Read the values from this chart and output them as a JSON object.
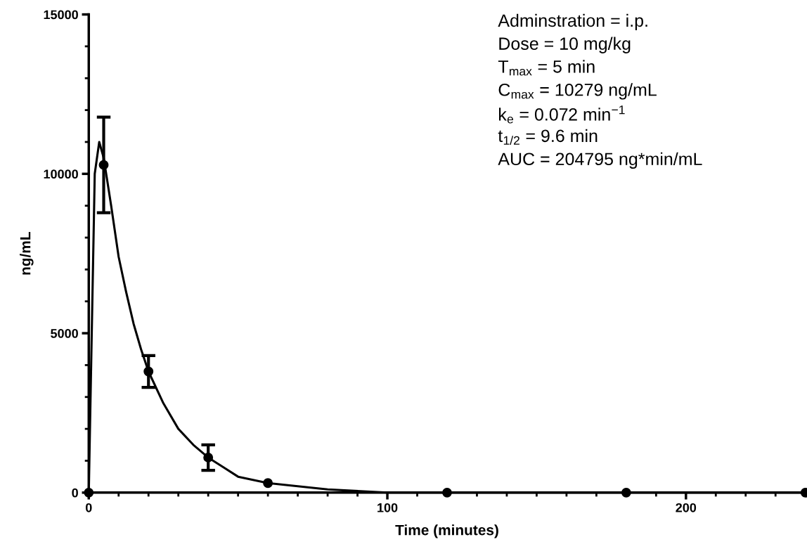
{
  "chart_data": {
    "type": "scatter",
    "xlabel": "Time (minutes)",
    "ylabel": "ng/mL",
    "xlim": [
      0,
      240
    ],
    "xticks": [
      0,
      100,
      200
    ],
    "ylim": [
      0,
      15000
    ],
    "yticks": [
      0,
      5000,
      10000,
      15000
    ],
    "grid": false,
    "legend": false,
    "series": [
      {
        "color": "#000000",
        "marker": "circle",
        "x": [
          0,
          5,
          20,
          40,
          60,
          120,
          180,
          240
        ],
        "values": [
          0,
          10279,
          3800,
          1100,
          300,
          0,
          0,
          0
        ],
        "errors": [
          null,
          1500,
          500,
          400,
          null,
          null,
          null,
          null
        ]
      },
      {
        "type": "line",
        "color": "#000000",
        "line_style": "solid",
        "x": [
          0,
          2,
          3.5,
          5,
          7.5,
          10,
          12.5,
          15,
          17.5,
          20,
          25,
          30,
          35,
          40,
          45,
          50,
          60,
          70,
          80,
          100,
          120,
          180,
          240
        ],
        "values": [
          0,
          10000,
          11000,
          10500,
          9000,
          7400,
          6300,
          5300,
          4500,
          3800,
          2800,
          2000,
          1500,
          1100,
          800,
          500,
          300,
          200,
          100,
          0,
          0,
          0,
          0
        ]
      }
    ],
    "annotations": [
      "Adminstration = i.p.",
      "Dose = 10 mg/kg",
      "T$_{max}$ = 5 min",
      "C$_{max}$ = 10279 ng/mL",
      "k$_{e}$ = 0.072 min$^{−1}$",
      "t$_{1/2}$ = 9.6 min",
      "AUC = 204795 ng*min/mL"
    ]
  }
}
